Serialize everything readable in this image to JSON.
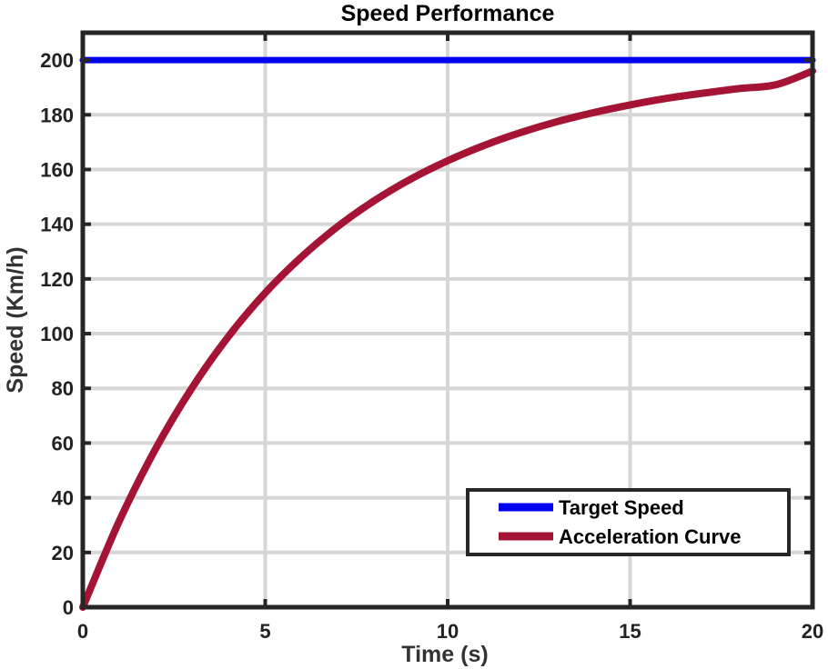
{
  "chart_data": {
    "type": "line",
    "title": "Speed Performance",
    "xlabel": "Time (s)",
    "ylabel": "Speed (Km/h)",
    "xlim": [
      0,
      20
    ],
    "ylim": [
      0,
      210
    ],
    "xticks": [
      0,
      5,
      10,
      15,
      20
    ],
    "yticks": [
      0,
      20,
      40,
      60,
      80,
      100,
      120,
      140,
      160,
      180,
      200
    ],
    "grid": true,
    "legend_position": "bottom-right",
    "series": [
      {
        "name": "Target Speed",
        "color": "#0000ee",
        "x": [
          0,
          20
        ],
        "y": [
          200,
          200
        ]
      },
      {
        "name": "Acceleration Curve",
        "color": "#a51435",
        "x": [
          0,
          1,
          2,
          3,
          4,
          5,
          6,
          7,
          8,
          9,
          10,
          11,
          12,
          13,
          14,
          15,
          16,
          17,
          18,
          19,
          20
        ],
        "y": [
          0,
          31.5,
          58.0,
          80.3,
          99.1,
          114.9,
          128.1,
          139.3,
          148.7,
          156.6,
          163.2,
          168.8,
          173.5,
          177.5,
          180.8,
          183.6,
          186.0,
          187.9,
          189.6,
          191.0,
          196.0
        ]
      }
    ]
  }
}
